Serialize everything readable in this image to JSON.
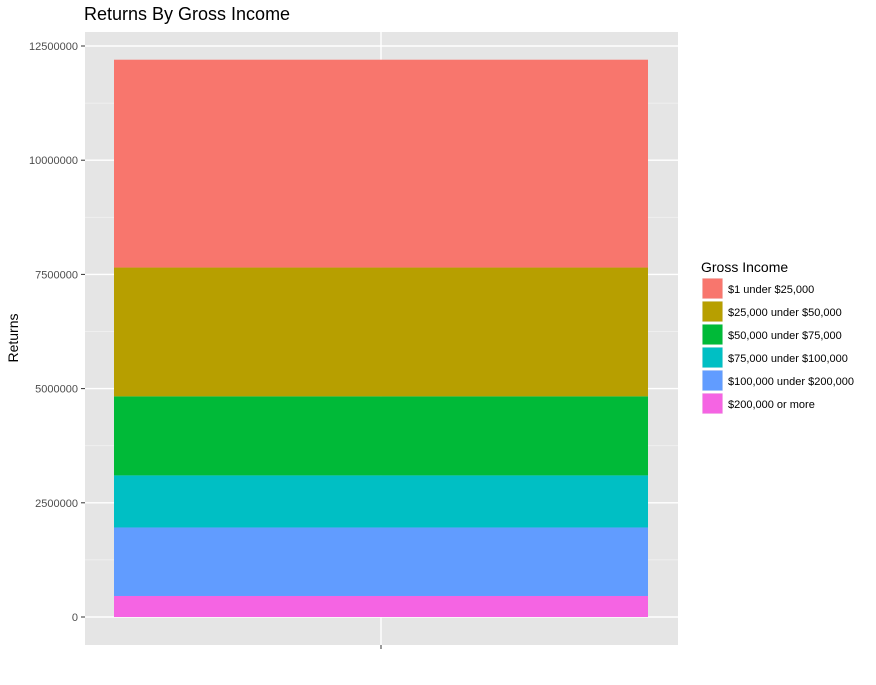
{
  "chart_data": {
    "type": "bar",
    "stacked": true,
    "title": "Returns By Gross Income",
    "xlabel": "",
    "ylabel": "Returns",
    "categories": [
      ""
    ],
    "ylim": [
      0,
      12500000
    ],
    "yticks": [
      0,
      2500000,
      5000000,
      7500000,
      10000000,
      12500000
    ],
    "ytick_labels": [
      "0",
      "2500000",
      "5000000",
      "7500000",
      "10000000",
      "12500000"
    ],
    "grid": true,
    "background": "#e5e5e5",
    "legend": {
      "title": "Gross Income",
      "placement": "right"
    },
    "series": [
      {
        "name": "$1 under $25,000",
        "values": [
          4550000
        ],
        "color": "#f8766d"
      },
      {
        "name": "$25,000 under $50,000",
        "values": [
          2820000
        ],
        "color": "#b79f00"
      },
      {
        "name": "$50,000 under $75,000",
        "values": [
          1730000
        ],
        "color": "#00ba38"
      },
      {
        "name": "$75,000 under $100,000",
        "values": [
          1140000
        ],
        "color": "#00bfc4"
      },
      {
        "name": "$100,000 under $200,000",
        "values": [
          1500000
        ],
        "color": "#619cff"
      },
      {
        "name": "$200,000 or more",
        "values": [
          460000
        ],
        "color": "#f564e3"
      }
    ]
  }
}
